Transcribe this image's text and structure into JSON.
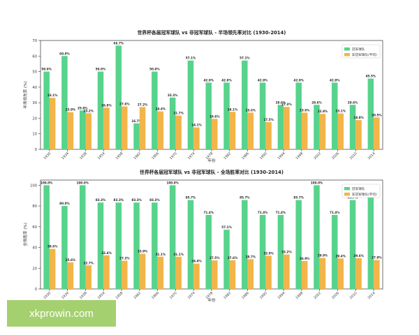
{
  "colors": {
    "green": "#57d38c",
    "orange": "#f1b54a",
    "axis": "#333333",
    "text": "#222222"
  },
  "chart_data": [
    {
      "type": "bar",
      "title": "世界杯各届冠军球队 vs 非冠军球队 - 半场领先率对比 (1930-2014)",
      "xlabel": "年份",
      "ylabel": "半场领先率 (%)",
      "ylim": [
        0,
        70
      ],
      "yticks": [
        "0",
        "10",
        "20",
        "30",
        "40",
        "50",
        "60",
        "70"
      ],
      "legend_position": "top-right",
      "categories": [
        "1930",
        "1934",
        "1938",
        "1954",
        "1958",
        "1962",
        "1966",
        "1970",
        "1974",
        "1978",
        "1982",
        "1986",
        "1990",
        "1994",
        "1998",
        "2002",
        "2006",
        "2010",
        "2014"
      ],
      "series": [
        {
          "name": "冠军球队",
          "color": "#57d38c",
          "values": [
            50.0,
            60.0,
            25.0,
            50.0,
            66.7,
            16.7,
            50.0,
            33.3,
            57.1,
            42.9,
            42.9,
            57.1,
            42.9,
            28.6,
            42.9,
            28.6,
            42.9,
            28.6,
            45.5
          ],
          "labels": [
            "50.0%",
            "60.0%",
            "25.0%",
            "50.0%",
            "66.7%",
            "16.7%",
            "50.0%",
            "33.3%",
            "57.1%",
            "42.9%",
            "42.9%",
            "57.1%",
            "42.9%",
            "28.6%",
            "42.9%",
            "28.6%",
            "42.9%",
            "28.6%",
            "45.5%"
          ]
        },
        {
          "name": "非冠军球队(平均)",
          "color": "#f1b54a",
          "values": [
            33.1,
            23.9,
            23.2,
            26.8,
            27.6,
            27.2,
            24.4,
            21.7,
            14.1,
            19.6,
            24.1,
            23.6,
            17.5,
            27.3,
            23.6,
            22.8,
            23.1,
            18.8,
            20.5
          ],
          "labels": [
            "33.1%",
            "23.9%",
            "23.2%",
            "26.8%",
            "27.6%",
            "27.2%",
            "24.4%",
            "21.7%",
            "14.1%",
            "19.6%",
            "24.1%",
            "23.6%",
            "17.5%",
            "27.3%",
            "23.6%",
            "22.8%",
            "23.1%",
            "18.8%",
            "20.5%"
          ]
        }
      ]
    },
    {
      "type": "bar",
      "title": "世界杯各届冠军球队 vs 非冠军球队 - 全场胜率对比 (1930-2014)",
      "xlabel": "年份",
      "ylabel": "全场胜率 (%)",
      "ylim": [
        0,
        105
      ],
      "yticks": [
        "0",
        "20",
        "40",
        "60",
        "80",
        "100"
      ],
      "legend_position": "top-right",
      "categories": [
        "1930",
        "1934",
        "1938",
        "1954",
        "1958",
        "1962",
        "1966",
        "1970",
        "1974",
        "1978",
        "1982",
        "1986",
        "1990",
        "1994",
        "1998",
        "2002",
        "2006",
        "2010",
        "2014"
      ],
      "series": [
        {
          "name": "冠军球队",
          "color": "#57d38c",
          "values": [
            100.0,
            80.0,
            100.0,
            83.3,
            83.3,
            83.3,
            83.3,
            100.0,
            85.7,
            71.4,
            57.1,
            85.7,
            71.4,
            71.4,
            85.7,
            100.0,
            71.4,
            85.7,
            90.9
          ],
          "labels": [
            "100.0%",
            "80.0%",
            "100.0%",
            "83.3%",
            "83.3%",
            "83.3%",
            "83.3%",
            "100.0%",
            "85.7%",
            "71.4%",
            "57.1%",
            "85.7%",
            "71.4%",
            "71.4%",
            "85.7%",
            "100.0%",
            "71.4%",
            "85.7%",
            "90.9%"
          ]
        },
        {
          "name": "非冠军球队(平均)",
          "color": "#f1b54a",
          "values": [
            38.6,
            25.6,
            22.7,
            32.4,
            27.2,
            33.9,
            31.1,
            31.1,
            24.4,
            27.5,
            27.6,
            28.7,
            32.0,
            33.2,
            26.9,
            29.9,
            29.4,
            29.6,
            27.9
          ],
          "labels": [
            "38.6%",
            "25.6%",
            "22.7%",
            "32.4%",
            "27.2%",
            "33.9%",
            "31.1%",
            "31.1%",
            "24.4%",
            "27.5%",
            "27.6%",
            "28.7%",
            "32.0%",
            "33.2%",
            "26.9%",
            "29.9%",
            "29.4%",
            "29.6%",
            "27.9%"
          ]
        }
      ]
    }
  ],
  "watermark": {
    "text": "xkprowin.com"
  }
}
